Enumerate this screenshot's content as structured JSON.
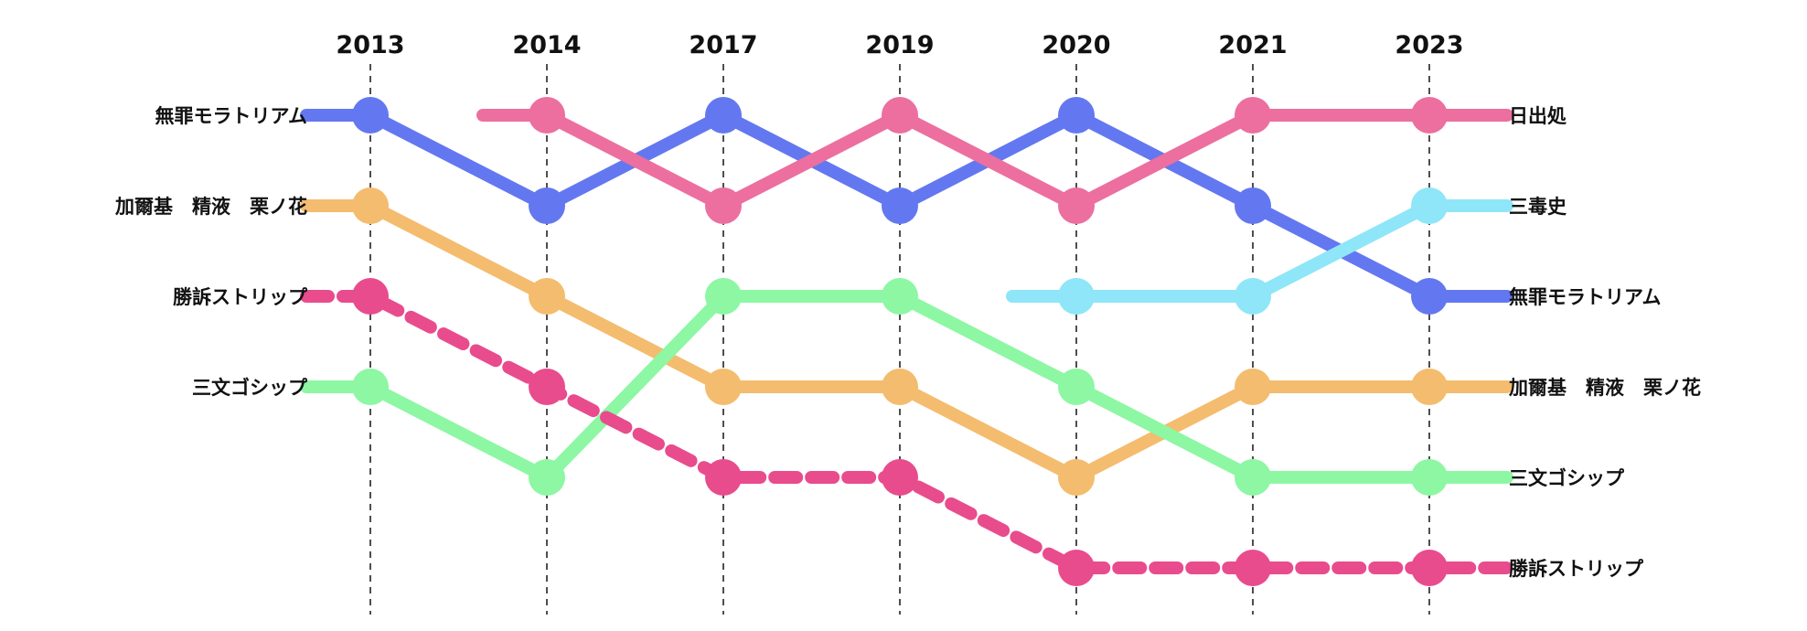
{
  "chart_data": {
    "type": "bump",
    "title": "",
    "years": [
      "2013",
      "2014",
      "2017",
      "2019",
      "2020",
      "2021",
      "2023"
    ],
    "left_labels": [
      "無罪モラトリアム",
      "加爾基　精液　栗ノ花",
      "勝訴ストリップ",
      "三文ゴシップ"
    ],
    "right_labels": [
      "日出処",
      "三毒史",
      "無罪モラトリアム",
      "加爾基　精液　栗ノ花",
      "三文ゴシップ",
      "勝訴ストリップ"
    ],
    "series": [
      {
        "name": "無罪モラトリアム",
        "color": "#6378F0",
        "dashed": false,
        "start": 0,
        "ranks": [
          1,
          2,
          1,
          2,
          1,
          2,
          3
        ]
      },
      {
        "name": "日出処",
        "color": "#EC6FA0",
        "dashed": false,
        "start": 1,
        "ranks": [
          1,
          2,
          1,
          2,
          1,
          1
        ]
      },
      {
        "name": "加爾基　精液　栗ノ花",
        "color": "#F4BC6E",
        "dashed": false,
        "start": 0,
        "ranks": [
          2,
          3,
          4,
          4,
          5,
          4,
          4
        ]
      },
      {
        "name": "三文ゴシップ",
        "color": "#8DF7A3",
        "dashed": false,
        "start": 0,
        "ranks": [
          4,
          5,
          3,
          3,
          4,
          5,
          5
        ]
      },
      {
        "name": "勝訴ストリップ",
        "color": "#E84C8D",
        "dashed": true,
        "start": 0,
        "ranks": [
          3,
          4,
          5,
          5,
          6,
          6,
          6
        ]
      },
      {
        "name": "三毒史",
        "color": "#8EE6F8",
        "dashed": false,
        "start": 4,
        "ranks": [
          3,
          3,
          2
        ]
      }
    ]
  }
}
